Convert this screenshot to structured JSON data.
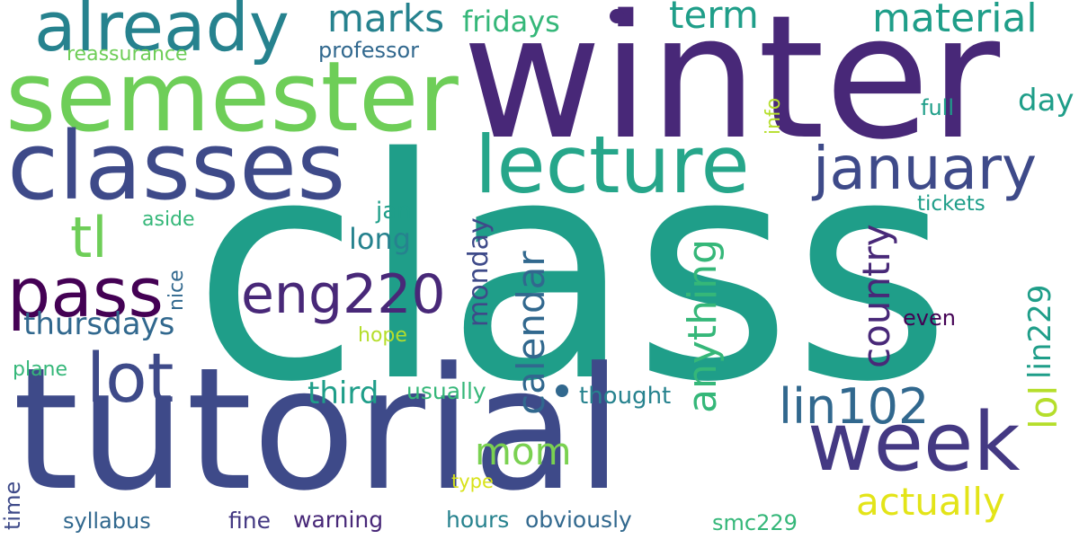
{
  "colors": {
    "dark_purple": "#440154",
    "indigo": "#482878",
    "slate_blue": "#3e4a89",
    "blue": "#31688e",
    "teal_blue": "#26828e",
    "teal": "#1f9e89",
    "green_teal": "#35b779",
    "green": "#6ece58",
    "lime": "#b5de2b",
    "yellow": "#fde725",
    "background": "#ffffff"
  },
  "words": {
    "class": "class",
    "winter": "winter",
    "tutorial": "tutorial",
    "semester": "semester",
    "classes": "classes",
    "lecture": "lecture",
    "already": "already",
    "week": "week",
    "january": "january",
    "pass": "pass",
    "lot": "lot",
    "eng220": "eng220",
    "lin102": "lin102",
    "material": "material",
    "marks": "marks",
    "term": "term",
    "fridays": "fridays",
    "professor": "professor",
    "reassurance": "reassurance",
    "tl": "tl",
    "thursdays": "thursdays",
    "country": "country",
    "anything": "anything",
    "calendar": "calendar",
    "monday": "monday",
    "lin229": "lin229",
    "lol": "lol",
    "actually": "actually",
    "mom": "mom",
    "third": "third",
    "usually": "usually",
    "thought": "thought",
    "hours": "hours",
    "obviously": "obviously",
    "warning": "warning",
    "syllabus": "syllabus",
    "fine": "fine",
    "smc229": "smc229",
    "type": "type",
    "time": "time",
    "plane": "plane",
    "hope": "hope",
    "even": "even",
    "nice": "nice",
    "aside": "aside",
    "jan": "jan",
    "long": "long",
    "tickets": "tickets",
    "day": "day",
    "full": "full",
    "info": "info"
  }
}
